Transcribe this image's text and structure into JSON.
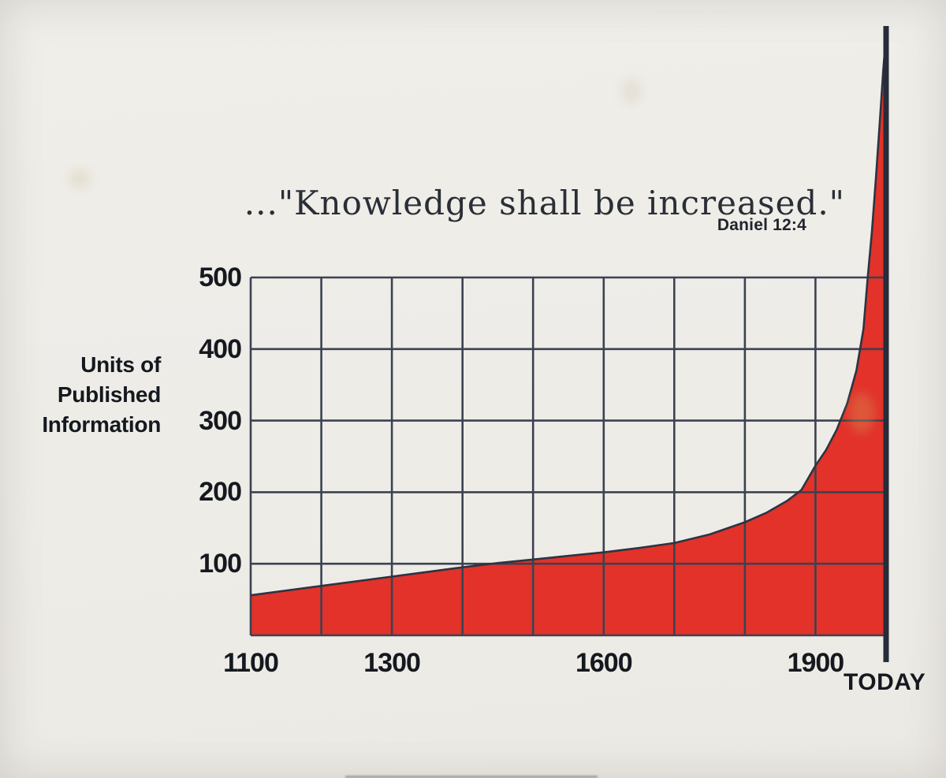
{
  "chart_data": {
    "type": "area",
    "title": "...\"Knowledge shall be increased.\"",
    "attribution": "Daniel 12:4",
    "ylabel": "Units of Published Information",
    "ylabel_lines": [
      "Units of",
      "Published",
      "Information"
    ],
    "y_ticks": [
      100,
      200,
      300,
      400,
      500
    ],
    "y_visible_range": [
      0,
      500
    ],
    "x_range_years": [
      1100,
      2000
    ],
    "x_grid_step_years": 100,
    "x_tick_labels": [
      {
        "label": "1100",
        "year": 1100
      },
      {
        "label": "1300",
        "year": 1300
      },
      {
        "label": "1600",
        "year": 1600
      },
      {
        "label": "1900",
        "year": 1900
      }
    ],
    "today_label": "TODAY",
    "today_year": 2000,
    "grid": true,
    "legend": "none",
    "series": [
      {
        "name": "units-of-published-information",
        "points": [
          [
            1100,
            56
          ],
          [
            1200,
            69
          ],
          [
            1300,
            82
          ],
          [
            1400,
            95
          ],
          [
            1450,
            101
          ],
          [
            1500,
            106
          ],
          [
            1550,
            111
          ],
          [
            1600,
            116
          ],
          [
            1650,
            122
          ],
          [
            1700,
            129
          ],
          [
            1750,
            141
          ],
          [
            1800,
            158
          ],
          [
            1830,
            171
          ],
          [
            1860,
            188
          ],
          [
            1880,
            203
          ],
          [
            1900,
            237
          ],
          [
            1915,
            259
          ],
          [
            1930,
            287
          ],
          [
            1945,
            324
          ],
          [
            1958,
            370
          ],
          [
            1968,
            428
          ],
          [
            1974,
            500
          ],
          [
            1980,
            565
          ],
          [
            1986,
            645
          ],
          [
            1992,
            730
          ],
          [
            1996,
            790
          ],
          [
            2000,
            840
          ]
        ]
      }
    ],
    "colors": {
      "background": "#eeece7",
      "area_fill": "#e2322a",
      "grid_line": "#3b4251",
      "curve_stroke": "#2d3442",
      "axis": "#262c39",
      "tick_text": "#15191f",
      "title_text": "#2a2e36"
    }
  }
}
